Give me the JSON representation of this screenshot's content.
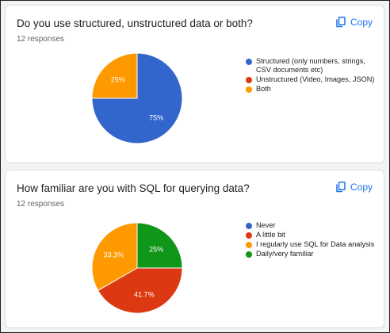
{
  "copy_label": "Copy",
  "chart_data": [
    {
      "type": "pie",
      "title": "Do you use structured, unstructured data or both?",
      "responses": "12 responses",
      "start_angle": 0,
      "series": [
        {
          "name": "Structured (only numbers, strings, CSV documents etc)",
          "value": 75,
          "label": "75%",
          "color": "#3366cc"
        },
        {
          "name": "Unstructured (Video, Images, JSON)",
          "value": 0,
          "label": "",
          "color": "#dc3912"
        },
        {
          "name": "Both",
          "value": 25,
          "label": "25%",
          "color": "#ff9900"
        }
      ]
    },
    {
      "type": "pie",
      "title": "How familiar are you with SQL for querying data?",
      "responses": "12 responses",
      "start_angle": 0,
      "series": [
        {
          "name": "Never",
          "value": 0,
          "label": "",
          "color": "#3366cc"
        },
        {
          "name": "Daily/very familiar",
          "value": 25,
          "label": "25%",
          "color": "#109618"
        },
        {
          "name": "A little bit",
          "value": 41.7,
          "label": "41.7%",
          "color": "#dc3912"
        },
        {
          "name": "I regularly use SQL for Data analysis",
          "value": 33.3,
          "label": "33.3%",
          "color": "#ff9900"
        }
      ],
      "legend_order": [
        "Never",
        "A little bit",
        "I regularly use SQL for Data analysis",
        "Daily/very familiar"
      ]
    }
  ]
}
